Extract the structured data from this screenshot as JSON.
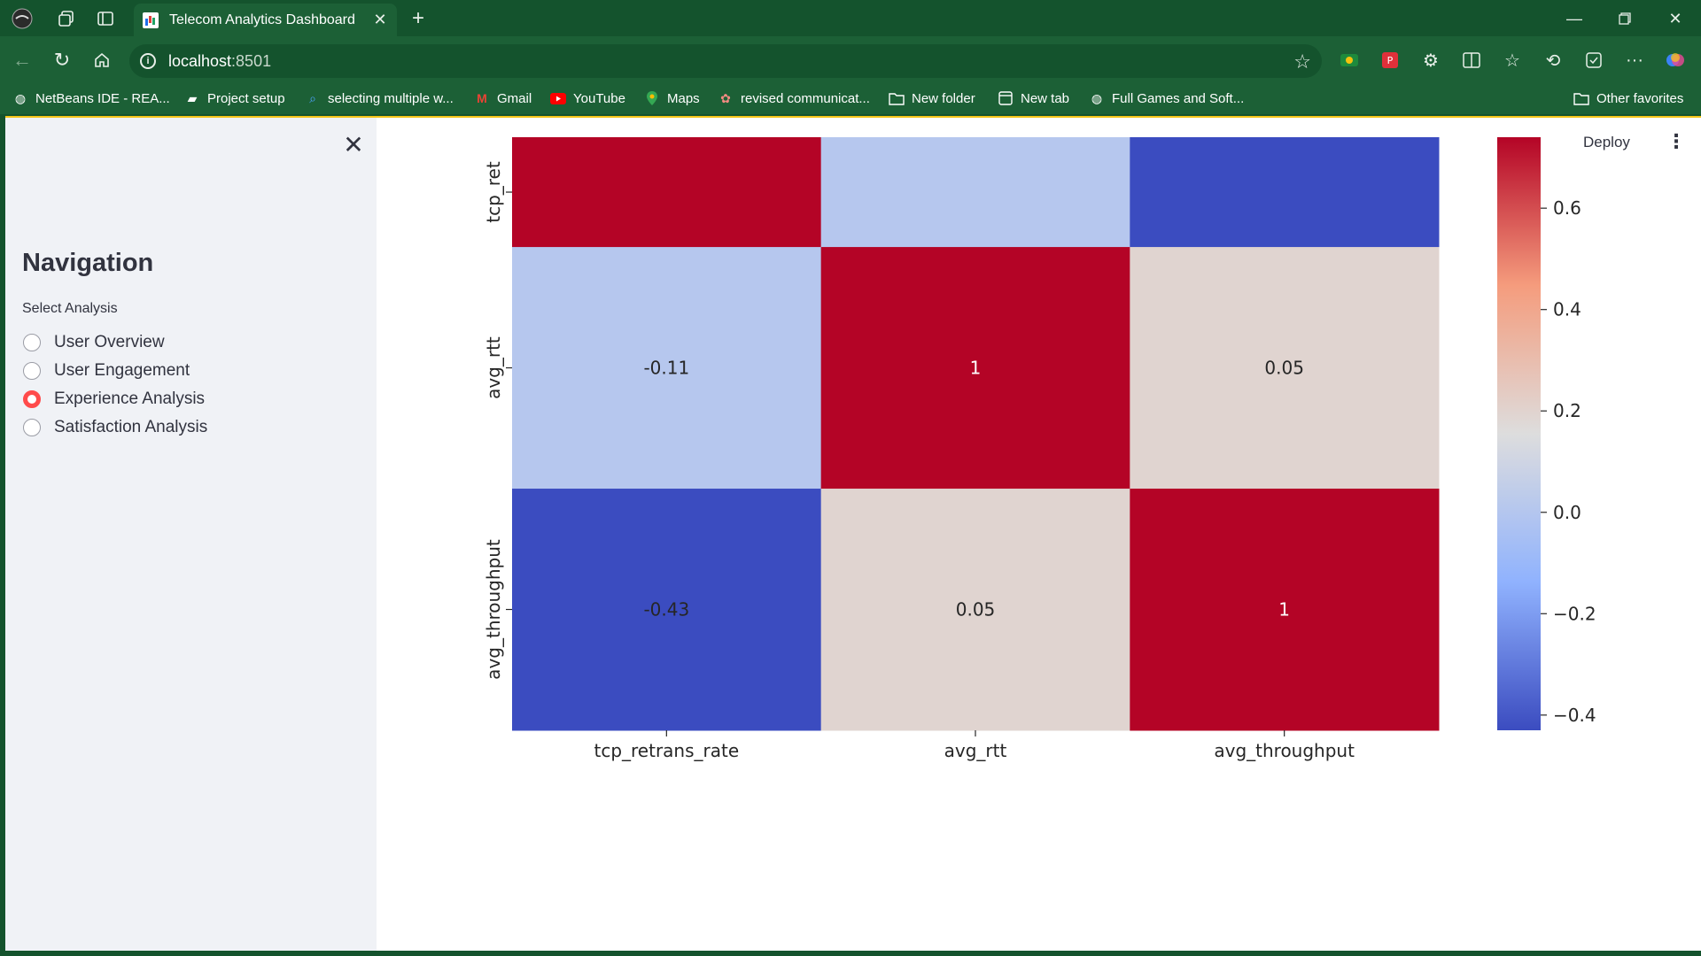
{
  "browser": {
    "tab_title": "Telecom Analytics Dashboard",
    "url_host": "localhost",
    "url_port": ":8501",
    "bookmarks": [
      {
        "label": "NetBeans IDE - REA...",
        "icon": "globe-icon"
      },
      {
        "label": "Project setup",
        "icon": "project-icon"
      },
      {
        "label": "selecting multiple w...",
        "icon": "search-icon"
      },
      {
        "label": "Gmail",
        "icon": "gmail-icon"
      },
      {
        "label": "YouTube",
        "icon": "youtube-icon"
      },
      {
        "label": "Maps",
        "icon": "maps-icon"
      },
      {
        "label": "revised communicat...",
        "icon": "app-icon"
      },
      {
        "label": "New folder",
        "icon": "folder-icon"
      },
      {
        "label": "New tab",
        "icon": "newtab-icon"
      },
      {
        "label": "Full Games and Soft...",
        "icon": "globe-icon"
      }
    ],
    "other_favorites": "Other favorites"
  },
  "sidebar": {
    "title": "Navigation",
    "select_label": "Select Analysis",
    "options": [
      {
        "label": "User Overview",
        "checked": false
      },
      {
        "label": "User Engagement",
        "checked": false
      },
      {
        "label": "Experience Analysis",
        "checked": true
      },
      {
        "label": "Satisfaction Analysis",
        "checked": false
      }
    ]
  },
  "header": {
    "deploy_label": "Deploy"
  },
  "chart_data": {
    "type": "heatmap",
    "title": "",
    "x_labels": [
      "tcp_retrans_rate",
      "avg_rtt",
      "avg_throughput"
    ],
    "y_labels": [
      "tcp_ret",
      "avg_rtt",
      "avg_throughput"
    ],
    "values": [
      [
        1,
        -0.11,
        -0.43
      ],
      [
        -0.11,
        1,
        0.05
      ],
      [
        -0.43,
        0.05,
        1
      ]
    ],
    "annotations": [
      [
        "",
        "",
        ""
      ],
      [
        "-0.11",
        "1",
        "0.05"
      ],
      [
        "-0.43",
        "0.05",
        "1"
      ]
    ],
    "row_weights": [
      1,
      2.2,
      2.2
    ],
    "colormap": "coolwarm",
    "colorbar": {
      "vmin": -0.43,
      "vmax": 0.74,
      "ticks": [
        0.6,
        0.4,
        0.2,
        0.0,
        -0.2,
        -0.4
      ],
      "tick_labels": [
        "0.6",
        "0.4",
        "0.2",
        "0.0",
        "−0.2",
        "−0.4"
      ]
    }
  }
}
